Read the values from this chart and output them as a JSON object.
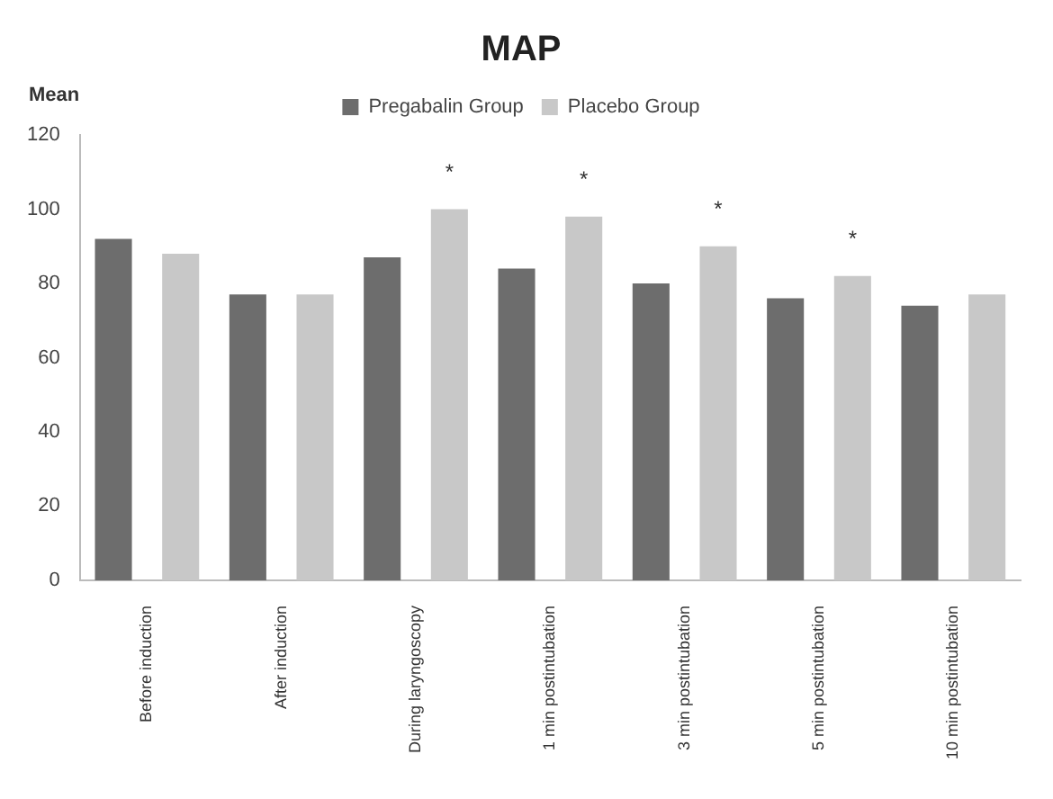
{
  "chart_data": {
    "type": "bar",
    "title": "MAP",
    "ylabel": "Mean",
    "categories": [
      "Before induction",
      "After induction",
      "During laryngoscopy",
      "1 min postintubation",
      "3 min postintubation",
      "5 min postintubation",
      "10 min postintubation"
    ],
    "series": [
      {
        "name": "Pregabalin Group",
        "color": "#6d6d6d",
        "values": [
          92,
          77,
          87,
          84,
          80,
          76,
          74
        ]
      },
      {
        "name": "Placebo Group",
        "color": "#c8c8c8",
        "values": [
          88,
          77,
          100,
          98,
          90,
          82,
          77
        ],
        "value_labels": [
          null,
          null,
          "*",
          "*",
          "*",
          "*",
          null
        ]
      }
    ],
    "ylim": [
      0,
      120
    ],
    "yticks": [
      0,
      20,
      40,
      60,
      80,
      100,
      120
    ],
    "grid": false,
    "legend": "top"
  }
}
